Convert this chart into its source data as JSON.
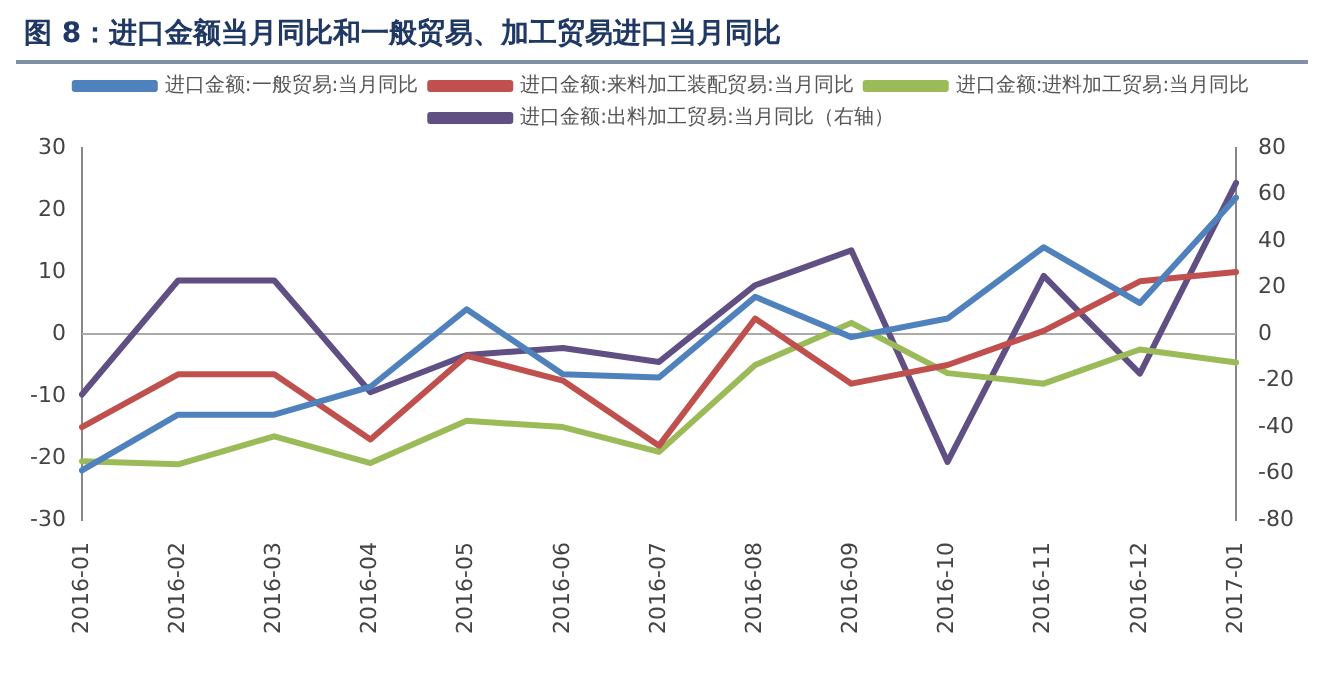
{
  "chart_data": {
    "type": "line",
    "title": "图 8：进口金额当月同比和一般贸易、加工贸易进口当月同比",
    "categories": [
      "2016-01",
      "2016-02",
      "2016-03",
      "2016-04",
      "2016-05",
      "2016-06",
      "2016-07",
      "2016-08",
      "2016-09",
      "2016-10",
      "2016-11",
      "2016-12",
      "2017-01"
    ],
    "series": [
      {
        "name": "进口金额:一般贸易:当月同比",
        "color": "#4f81bd",
        "values": [
          -22,
          -13,
          -13,
          -8.5,
          4,
          -6.5,
          -7,
          6,
          -0.5,
          2.5,
          14,
          5,
          22
        ]
      },
      {
        "name": "进口金额:来料加工装配贸易:当月同比",
        "color": "#c0504d",
        "values": [
          -15,
          -6.5,
          -6.5,
          -17,
          -3.5,
          -7.5,
          -18,
          2.5,
          -8,
          -5,
          0.5,
          8.5,
          10
        ]
      },
      {
        "name": "进口金额:进料加工贸易:当月同比",
        "color": "#9bbb59",
        "values": [
          -20.5,
          -21,
          -16.5,
          -20.8,
          -14,
          -15,
          -19,
          -5,
          1.8,
          -6.3,
          -8,
          -2.5,
          -4.6
        ]
      },
      {
        "name": "进口金额:出料加工贸易:当月同比（右轴）",
        "color": "#5f4f83",
        "axis": "y2",
        "values": [
          -26,
          23,
          23,
          -25,
          -9,
          -6,
          -12,
          21,
          36,
          -55,
          25,
          -17,
          65
        ]
      }
    ],
    "ylim": [
      -30,
      30
    ],
    "yticks": [
      -30,
      -20,
      -10,
      0,
      10,
      20,
      30
    ],
    "y2lim": [
      -80,
      80
    ],
    "y2ticks": [
      -80,
      -60,
      -40,
      -20,
      0,
      20,
      40,
      60,
      80
    ],
    "ref_lines": [
      {
        "axis": "y",
        "value": 0,
        "color": "#aaaaaa"
      }
    ],
    "grid": false,
    "legend": "top",
    "marker": "none",
    "line_style": "solid"
  }
}
